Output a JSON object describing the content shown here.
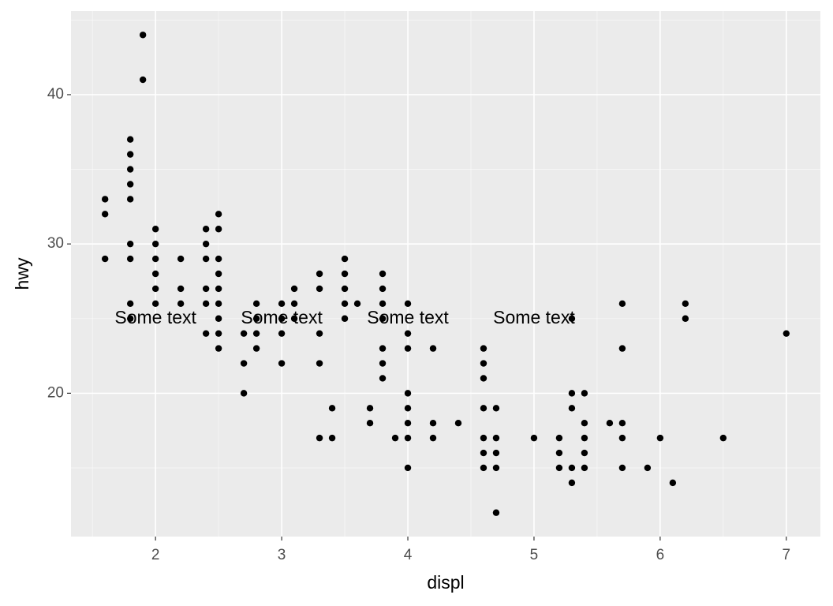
{
  "chart_data": {
    "type": "scatter",
    "x_label": "displ",
    "y_label": "hwy",
    "xlim": [
      1.33,
      7.27
    ],
    "ylim": [
      10.4,
      45.6
    ],
    "xticks": [
      2,
      3,
      4,
      5,
      6,
      7
    ],
    "yticks": [
      20,
      30,
      40
    ],
    "x_minor_ticks": [
      1.5,
      2.5,
      3.5,
      4.5,
      5.5,
      6.5
    ],
    "y_minor_ticks": [
      15,
      25,
      35,
      45
    ],
    "grid": true,
    "color": "#000000",
    "x": [
      1.6,
      1.6,
      1.6,
      1.8,
      1.8,
      1.8,
      1.8,
      1.8,
      1.8,
      1.8,
      1.8,
      1.8,
      1.9,
      1.9,
      2.0,
      2.0,
      2.0,
      2.0,
      2.0,
      2.0,
      2.2,
      2.2,
      2.2,
      2.4,
      2.4,
      2.4,
      2.4,
      2.4,
      2.4,
      2.5,
      2.5,
      2.5,
      2.5,
      2.5,
      2.5,
      2.5,
      2.5,
      2.5,
      2.7,
      2.7,
      2.7,
      2.8,
      2.8,
      2.8,
      2.8,
      3.0,
      3.0,
      3.0,
      3.0,
      3.1,
      3.1,
      3.1,
      3.3,
      3.3,
      3.3,
      3.3,
      3.3,
      3.4,
      3.4,
      3.5,
      3.5,
      3.5,
      3.5,
      3.5,
      3.6,
      3.7,
      3.7,
      3.8,
      3.8,
      3.8,
      3.8,
      3.8,
      3.8,
      3.8,
      3.9,
      4.0,
      4.0,
      4.0,
      4.0,
      4.0,
      4.0,
      4.0,
      4.0,
      4.2,
      4.2,
      4.2,
      4.4,
      4.6,
      4.6,
      4.6,
      4.6,
      4.6,
      4.6,
      4.6,
      4.7,
      4.7,
      4.7,
      4.7,
      4.7,
      5.0,
      5.2,
      5.2,
      5.2,
      5.3,
      5.3,
      5.3,
      5.3,
      5.3,
      5.4,
      5.4,
      5.4,
      5.4,
      5.4,
      5.6,
      5.7,
      5.7,
      5.7,
      5.7,
      5.7,
      5.9,
      6.0,
      6.1,
      6.2,
      6.2,
      6.5,
      7.0
    ],
    "y": [
      33,
      32,
      29,
      37,
      36,
      35,
      34,
      33,
      30,
      29,
      26,
      25,
      44,
      41,
      31,
      30,
      29,
      28,
      27,
      26,
      29,
      27,
      26,
      31,
      30,
      29,
      27,
      26,
      24,
      32,
      31,
      29,
      28,
      27,
      26,
      25,
      24,
      23,
      24,
      22,
      20,
      26,
      25,
      24,
      23,
      26,
      25,
      24,
      22,
      27,
      26,
      25,
      28,
      27,
      24,
      22,
      17,
      19,
      17,
      29,
      28,
      27,
      26,
      25,
      26,
      19,
      18,
      28,
      27,
      26,
      25,
      23,
      22,
      21,
      17,
      26,
      24,
      23,
      20,
      19,
      18,
      17,
      15,
      23,
      18,
      17,
      18,
      23,
      22,
      21,
      19,
      17,
      16,
      15,
      19,
      17,
      16,
      15,
      12,
      17,
      17,
      16,
      15,
      25,
      20,
      19,
      15,
      14,
      20,
      18,
      17,
      16,
      15,
      18,
      26,
      23,
      18,
      17,
      15,
      15,
      17,
      14,
      26,
      25,
      17,
      24
    ],
    "annotations": [
      {
        "x": 2,
        "y": 25,
        "label": "Some text"
      },
      {
        "x": 3,
        "y": 25,
        "label": "Some text"
      },
      {
        "x": 4,
        "y": 25,
        "label": "Some text"
      },
      {
        "x": 5,
        "y": 25,
        "label": "Some text"
      }
    ]
  }
}
